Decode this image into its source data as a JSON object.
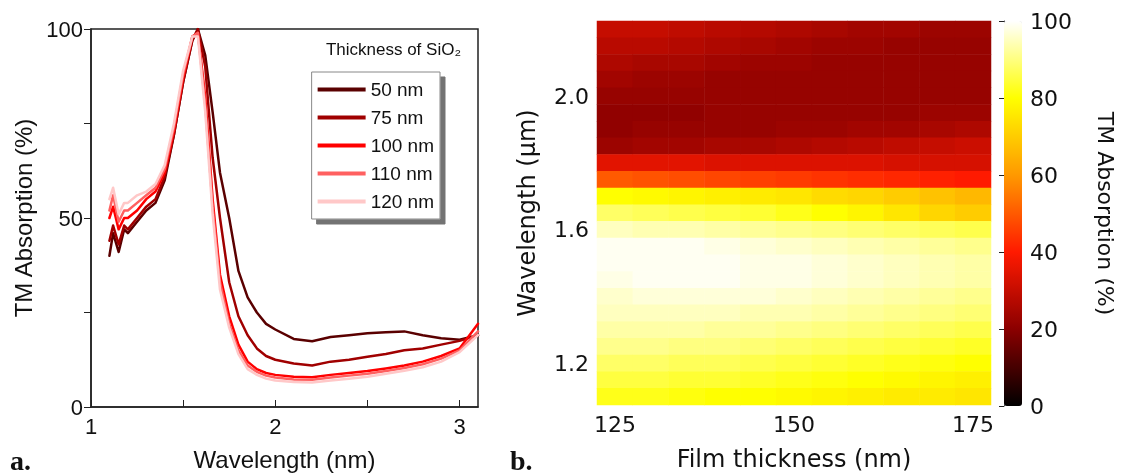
{
  "chart_data": [
    {
      "type": "line",
      "xlabel": "Wavelength (nm)",
      "ylabel": "TM Absorption (%)",
      "legend_title": "Thickness of SiO₂",
      "legend": "top right",
      "annotations": [
        "a."
      ],
      "x": [
        1.1,
        1.12,
        1.15,
        1.18,
        1.2,
        1.25,
        1.3,
        1.35,
        1.4,
        1.45,
        1.5,
        1.55,
        1.58,
        1.62,
        1.66,
        1.7,
        1.75,
        1.8,
        1.85,
        1.9,
        1.95,
        2.0,
        2.1,
        2.2,
        2.3,
        2.4,
        2.5,
        2.6,
        2.7,
        2.8,
        2.9,
        3.0,
        3.1
      ],
      "xlim": [
        1,
        3.1
      ],
      "xticks": [
        1,
        {
          "value": 1.5,
          "label": null
        },
        2,
        {
          "value": 2.5,
          "label": null
        },
        3
      ],
      "ylim": [
        0,
        100
      ],
      "yticks": [
        0,
        {
          "value": 25,
          "label": null
        },
        50,
        {
          "value": 75,
          "label": null
        },
        100
      ],
      "series": [
        {
          "name": "50 nm",
          "color": "#5a0000",
          "values": [
            40,
            46,
            41,
            47,
            46,
            49,
            52,
            54,
            60,
            72,
            86,
            97,
            100,
            93,
            78,
            62,
            50,
            36,
            29,
            25,
            22,
            20.5,
            18,
            17.4,
            18.5,
            19,
            19.5,
            19.8,
            20,
            19,
            18.2,
            17.8,
            19
          ]
        },
        {
          "name": "75 nm",
          "color": "#a00000",
          "values": [
            44,
            48,
            43,
            48,
            47,
            50,
            53,
            55,
            61,
            72,
            86,
            97,
            100,
            90,
            66,
            50,
            33,
            24,
            19,
            15.5,
            13.5,
            12.5,
            11.5,
            11,
            12,
            12.5,
            13.3,
            14,
            15,
            15.5,
            16.5,
            17.5,
            19
          ]
        },
        {
          "name": "100 nm",
          "color": "#ff0000",
          "values": [
            50,
            53,
            47,
            50,
            50,
            52,
            55,
            57,
            62,
            73,
            87,
            98,
            99,
            82,
            55,
            35,
            24,
            16.5,
            12,
            10,
            9,
            8.5,
            8,
            7.9,
            8.5,
            9,
            9.5,
            10.2,
            11,
            12,
            13.5,
            15.5,
            22
          ]
        },
        {
          "name": "110 nm",
          "color": "#ff6060",
          "values": [
            52,
            56,
            49,
            52,
            52,
            54,
            56,
            58,
            63,
            74,
            88,
            98,
            99,
            80,
            53,
            33,
            22,
            15,
            11,
            9.3,
            8.3,
            7.8,
            7.3,
            7.2,
            7.8,
            8.3,
            8.8,
            9.5,
            10.3,
            11.3,
            12.8,
            15,
            20
          ]
        },
        {
          "name": "120 nm",
          "color": "#ffc8c8",
          "values": [
            55,
            58,
            51,
            54,
            54,
            56,
            57,
            59,
            64,
            75,
            89,
            98,
            98,
            78,
            51,
            31,
            21,
            14,
            10,
            8.5,
            7.5,
            7,
            6.6,
            6.5,
            7,
            7.5,
            8,
            8.8,
            9.6,
            10.5,
            12,
            14.5,
            19
          ]
        }
      ]
    },
    {
      "type": "heatmap",
      "xlabel": "Film thickness (nm)",
      "ylabel": "Wavelength (µm)",
      "clabel": "TM Absorption (%)",
      "annotations": [
        "b."
      ],
      "categories": [
        "125",
        null,
        null,
        null,
        null,
        "150",
        null,
        null,
        null,
        null,
        "175"
      ],
      "y_categories": [
        null,
        null,
        null,
        null,
        "2.0",
        null,
        null,
        null,
        null,
        null,
        null,
        null,
        "1.6",
        null,
        null,
        null,
        null,
        null,
        null,
        null,
        "1.2",
        null,
        null
      ],
      "clim": [
        0,
        100
      ],
      "cticks": [
        0,
        20,
        40,
        60,
        80,
        100
      ],
      "cells": [
        [
          30,
          30,
          29,
          28,
          27,
          26,
          25,
          24,
          24,
          23,
          23
        ],
        [
          28,
          28,
          27,
          26,
          25,
          24,
          23,
          23,
          22,
          22,
          22
        ],
        [
          26,
          25,
          25,
          24,
          23,
          23,
          22,
          22,
          22,
          22,
          22
        ],
        [
          24,
          23,
          23,
          22,
          22,
          22,
          22,
          22,
          22,
          22,
          22
        ],
        [
          22,
          22,
          22,
          22,
          22,
          22,
          22,
          22,
          22,
          22,
          22
        ],
        [
          21,
          21,
          21,
          22,
          22,
          22,
          22,
          22,
          22,
          23,
          23
        ],
        [
          21,
          22,
          22,
          22,
          22,
          23,
          23,
          24,
          24,
          25,
          26
        ],
        [
          23,
          24,
          24,
          25,
          25,
          26,
          27,
          28,
          29,
          30,
          31
        ],
        [
          35,
          35,
          35,
          34,
          34,
          34,
          34,
          34,
          33,
          33,
          33
        ],
        [
          50,
          49,
          48,
          47,
          46,
          45,
          44,
          43,
          42,
          41,
          40
        ],
        [
          80,
          79,
          78,
          77,
          76,
          75,
          73,
          72,
          70,
          68,
          66
        ],
        [
          88,
          87,
          86,
          85,
          84,
          82,
          80,
          78,
          75,
          72,
          70
        ],
        [
          95,
          94,
          94,
          93,
          92,
          91,
          90,
          89,
          88,
          87,
          86
        ],
        [
          99,
          99,
          99,
          98,
          97,
          96,
          95,
          94,
          93,
          92,
          91
        ],
        [
          99,
          99,
          99,
          99,
          98,
          98,
          97,
          96,
          95,
          94,
          93
        ],
        [
          98,
          99,
          99,
          99,
          98,
          98,
          97,
          96,
          95,
          94,
          93
        ],
        [
          96,
          97,
          97,
          97,
          97,
          96,
          95,
          94,
          93,
          92,
          91
        ],
        [
          95,
          95,
          95,
          95,
          94,
          94,
          93,
          92,
          91,
          90,
          89
        ],
        [
          93,
          93,
          93,
          92,
          92,
          91,
          90,
          89,
          88,
          87,
          86
        ],
        [
          91,
          91,
          90,
          90,
          89,
          88,
          87,
          86,
          85,
          84,
          83
        ],
        [
          88,
          88,
          87,
          87,
          86,
          85,
          84,
          83,
          82,
          81,
          80
        ],
        [
          85,
          85,
          84,
          84,
          83,
          82,
          81,
          80,
          79,
          78,
          77
        ],
        [
          82,
          82,
          81,
          80,
          80,
          79,
          78,
          77,
          76,
          76,
          75
        ]
      ]
    }
  ]
}
